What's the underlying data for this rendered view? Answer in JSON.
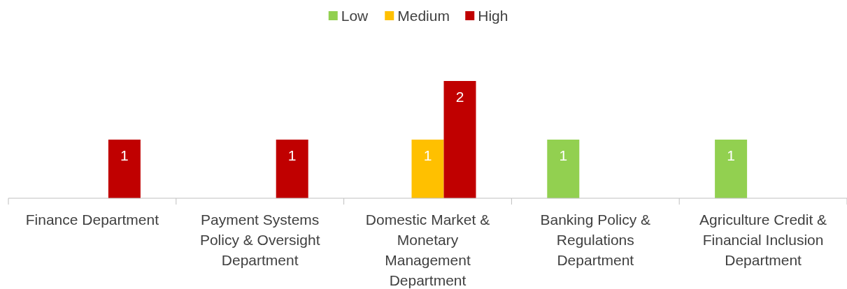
{
  "chart_data": {
    "type": "bar",
    "categories": [
      "Finance Department",
      "Payment Systems\nPolicy & Oversight\nDepartment",
      "Domestic Market &\nMonetary\nManagement\nDepartment",
      "Banking Policy &\nRegulations\nDepartment",
      "Agriculture Credit &\nFinancial Inclusion\nDepartment"
    ],
    "series": [
      {
        "name": "Low",
        "color": "#92d050",
        "values": [
          null,
          null,
          null,
          1,
          1
        ]
      },
      {
        "name": "Medium",
        "color": "#ffc000",
        "values": [
          null,
          null,
          1,
          null,
          null
        ]
      },
      {
        "name": "High",
        "color": "#c00000",
        "values": [
          1,
          1,
          2,
          null,
          null
        ]
      }
    ],
    "data_labels": true,
    "legend": "top"
  }
}
